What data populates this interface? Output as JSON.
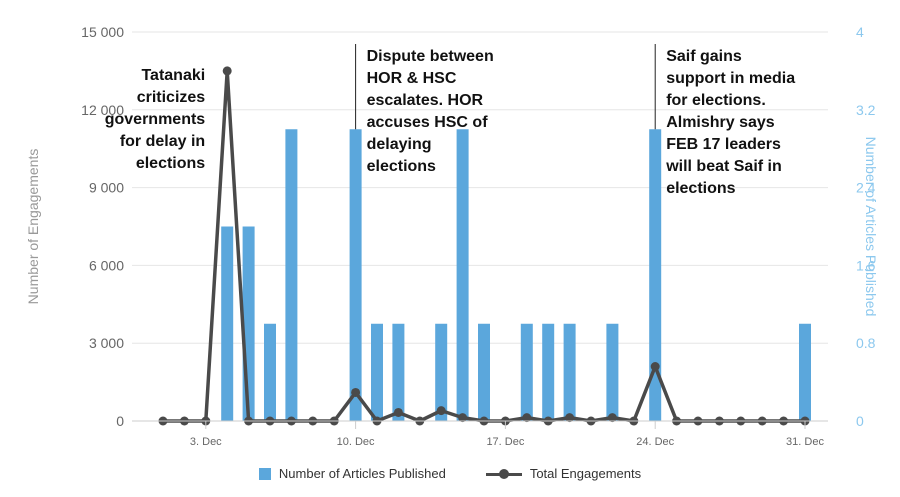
{
  "colors": {
    "bars": "#5ba7dc",
    "line": "#4a4a4a",
    "right_axis": "#8cc8ee",
    "left_axis_title": "#999999",
    "grid": "#e6e6e6"
  },
  "chart_data": {
    "type": "bar+line",
    "x_dates": [
      "1. Dec",
      "2. Dec",
      "3. Dec",
      "4. Dec",
      "5. Dec",
      "6. Dec",
      "7. Dec",
      "8. Dec",
      "9. Dec",
      "10. Dec",
      "11. Dec",
      "12. Dec",
      "13. Dec",
      "14. Dec",
      "15. Dec",
      "16. Dec",
      "17. Dec",
      "18. Dec",
      "19. Dec",
      "20. Dec",
      "21. Dec",
      "22. Dec",
      "23. Dec",
      "24. Dec",
      "25. Dec",
      "26. Dec",
      "27. Dec",
      "28. Dec",
      "29. Dec",
      "30. Dec",
      "31. Dec"
    ],
    "x_tick_labels": [
      "3. Dec",
      "10. Dec",
      "17. Dec",
      "24. Dec",
      "31. Dec"
    ],
    "series": [
      {
        "name": "Number of Articles Published",
        "type": "bar",
        "axis": "right",
        "values": [
          0,
          0,
          0,
          2,
          2,
          1,
          3,
          0,
          0,
          3,
          1,
          1,
          0,
          1,
          3,
          1,
          0,
          1,
          1,
          1,
          0,
          1,
          0,
          3,
          0,
          0,
          0,
          0,
          0,
          0,
          1
        ]
      },
      {
        "name": "Total Engagements",
        "type": "line",
        "axis": "left",
        "values": [
          0,
          0,
          0,
          13500,
          0,
          0,
          0,
          0,
          0,
          1100,
          0,
          330,
          0,
          400,
          130,
          0,
          0,
          130,
          0,
          130,
          0,
          130,
          0,
          2100,
          0,
          0,
          0,
          0,
          0,
          0,
          0
        ]
      }
    ],
    "left_axis": {
      "title": "Number of Engagements",
      "min": 0,
      "max": 15000,
      "ticks": [
        "0",
        "3 000",
        "6 000",
        "9 000",
        "12 000",
        "15 000"
      ]
    },
    "right_axis": {
      "title": "Number of Articles Published",
      "min": 0,
      "max": 4,
      "ticks": [
        "0",
        "0.8",
        "1.6",
        "2.4",
        "3.2",
        "4"
      ]
    },
    "grid": true,
    "legend_placement": "bottom",
    "annotations": [
      {
        "date_index": 3,
        "lines": [
          "Tatanaki",
          "criticizes",
          "governments",
          "for delay in",
          "elections"
        ]
      },
      {
        "date_index": 9,
        "lines": [
          "Dispute between",
          "HOR & HSC",
          "escalates. HOR",
          "accuses HSC of",
          "delaying",
          "elections"
        ]
      },
      {
        "date_index": 23,
        "lines": [
          "Saif gains",
          "support in media",
          "for elections.",
          "Almishry says",
          "FEB 17 leaders",
          "will beat Saif in",
          "elections"
        ]
      }
    ]
  }
}
